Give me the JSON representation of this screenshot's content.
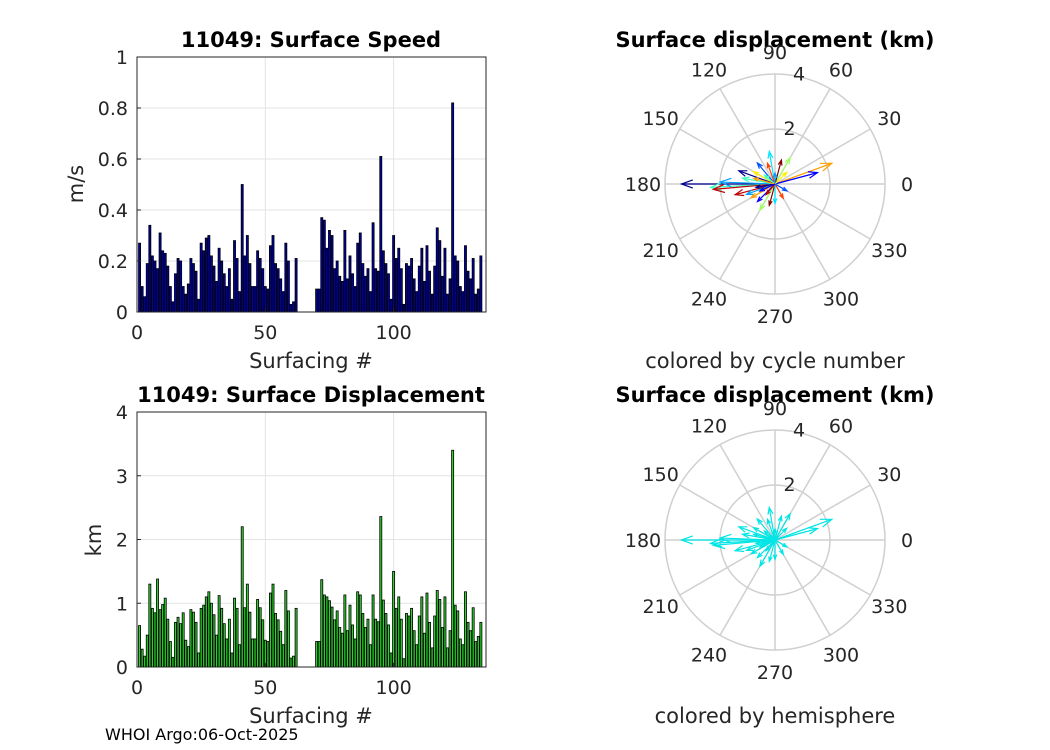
{
  "credit": "WHOI Argo:06-Oct-2025",
  "chart_data": [
    {
      "type": "bar",
      "title": "11049: Surface Speed",
      "xlabel": "Surfacing #",
      "ylabel": "m/s",
      "xlim": [
        0,
        136
      ],
      "ylim": [
        0,
        1
      ],
      "xticks": [
        "0",
        "50",
        "100"
      ],
      "yticks": [
        "0",
        "0.2",
        "0.4",
        "0.6",
        "0.8",
        "1"
      ],
      "bar_color": "#0000a8",
      "x_start": 1,
      "missing_x": [
        63,
        64,
        65,
        66,
        67,
        68,
        69
      ],
      "values": [
        0.27,
        0.1,
        0.06,
        0.19,
        0.34,
        0.22,
        0.2,
        0.17,
        0.31,
        0.24,
        0.23,
        0.18,
        0.1,
        0.04,
        0.15,
        0.21,
        0.2,
        0.1,
        0.07,
        0.11,
        0.21,
        0.19,
        0.16,
        0.05,
        0.27,
        0.24,
        0.29,
        0.3,
        0.22,
        0.18,
        0.12,
        0.25,
        0.2,
        0.15,
        0.1,
        0.17,
        0.05,
        0.28,
        0.21,
        0.08,
        0.5,
        0.22,
        0.3,
        0.19,
        0.1,
        0.1,
        0.24,
        0.21,
        0.17,
        0.1,
        0.09,
        0.26,
        0.3,
        0.19,
        0.17,
        0.13,
        0.08,
        0.27,
        0.2,
        0.03,
        0.04,
        0.21,
        0,
        0,
        0,
        0,
        0,
        0,
        0,
        0.09,
        0.09,
        0.37,
        0.36,
        0.25,
        0.32,
        0.3,
        0.17,
        0.2,
        0.14,
        0.12,
        0.32,
        0.13,
        0.22,
        0.15,
        0.1,
        0.27,
        0.31,
        0.19,
        0.14,
        0.17,
        0.08,
        0.35,
        0.17,
        0.16,
        0.61,
        0.24,
        0.19,
        0.15,
        0.05,
        0.3,
        0.21,
        0.25,
        0.17,
        0.03,
        0.19,
        0.18,
        0.21,
        0.13,
        0.08,
        0.18,
        0.25,
        0.12,
        0.26,
        0.16,
        0.07,
        0.18,
        0.33,
        0.28,
        0.14,
        0.25,
        0.07,
        0.13,
        0.82,
        0.22,
        0.2,
        0.1,
        0.08,
        0.26,
        0.16,
        0.13,
        0.21,
        0.07,
        0.09,
        0.22
      ]
    },
    {
      "type": "polar_vectors",
      "title": "Surface displacement (km)",
      "subtitle": "colored by cycle number",
      "rmax": 4,
      "rticks": [
        "2",
        "4"
      ],
      "angle_labels": [
        "0",
        "30",
        "60",
        "90",
        "120",
        "150",
        "180",
        "210",
        "240",
        "270",
        "300",
        "330"
      ],
      "color_mode": "cycle",
      "vectors": [
        {
          "angle": 180,
          "r": 3.4
        },
        {
          "angle": 183,
          "r": 2.35
        },
        {
          "angle": 185,
          "r": 2.25
        },
        {
          "angle": 178,
          "r": 2.0
        },
        {
          "angle": 20,
          "r": 2.2
        },
        {
          "angle": 15,
          "r": 1.6
        },
        {
          "angle": 60,
          "r": 1.1
        },
        {
          "angle": 75,
          "r": 0.9
        },
        {
          "angle": 100,
          "r": 1.2
        },
        {
          "angle": 110,
          "r": 0.8
        },
        {
          "angle": 130,
          "r": 1.0
        },
        {
          "angle": 150,
          "r": 0.9
        },
        {
          "angle": 160,
          "r": 1.4
        },
        {
          "angle": 170,
          "r": 1.2
        },
        {
          "angle": 195,
          "r": 1.5
        },
        {
          "angle": 200,
          "r": 1.1
        },
        {
          "angle": 210,
          "r": 1.0
        },
        {
          "angle": 225,
          "r": 0.9
        },
        {
          "angle": 240,
          "r": 1.1
        },
        {
          "angle": 255,
          "r": 0.8
        },
        {
          "angle": 270,
          "r": 0.7
        },
        {
          "angle": 300,
          "r": 0.6
        },
        {
          "angle": 330,
          "r": 0.5
        },
        {
          "angle": 45,
          "r": 0.6
        },
        {
          "angle": 190,
          "r": 0.7
        },
        {
          "angle": 140,
          "r": 0.5
        },
        {
          "angle": 230,
          "r": 0.5
        },
        {
          "angle": 90,
          "r": 0.4
        },
        {
          "angle": 165,
          "r": 0.8
        },
        {
          "angle": 205,
          "r": 0.6
        }
      ]
    },
    {
      "type": "bar",
      "title": "11049: Surface Displacement",
      "xlabel": "Surfacing #",
      "ylabel": "km",
      "xlim": [
        0,
        136
      ],
      "ylim": [
        0,
        4
      ],
      "xticks": [
        "0",
        "50",
        "100"
      ],
      "yticks": [
        "0",
        "1",
        "2",
        "3",
        "4"
      ],
      "bar_color": "#2ed22e",
      "x_start": 1,
      "missing_x": [
        63,
        64,
        65,
        66,
        67,
        68,
        69
      ],
      "values": [
        0.65,
        0.28,
        0.17,
        0.5,
        1.3,
        0.92,
        0.85,
        1.38,
        0.9,
        0.98,
        1.08,
        0.75,
        0.4,
        0.15,
        0.7,
        0.78,
        0.68,
        0.85,
        0.42,
        0.32,
        0.9,
        0.86,
        0.7,
        0.22,
        0.92,
        0.97,
        1.1,
        1.18,
        1.0,
        0.82,
        0.5,
        1.12,
        0.92,
        0.68,
        0.44,
        0.75,
        0.22,
        1.08,
        0.92,
        0.35,
        2.2,
        0.93,
        1.3,
        0.86,
        0.44,
        0.44,
        1.06,
        0.93,
        0.74,
        0.42,
        0.4,
        1.16,
        1.3,
        0.84,
        0.74,
        0.56,
        0.35,
        1.2,
        0.88,
        0.14,
        0.17,
        0.92,
        0,
        0,
        0,
        0,
        0,
        0,
        0,
        0.4,
        0.4,
        1.37,
        1.13,
        1.1,
        1.04,
        0.94,
        0.74,
        0.88,
        0.62,
        0.53,
        1.13,
        0.57,
        0.97,
        0.66,
        0.44,
        1.18,
        1.13,
        0.84,
        0.62,
        0.75,
        0.35,
        1.13,
        0.75,
        0.71,
        2.36,
        1.05,
        0.84,
        0.66,
        0.22,
        1.5,
        0.92,
        1.1,
        0.75,
        0.13,
        0.84,
        0.8,
        0.92,
        0.57,
        0.35,
        0.8,
        1.1,
        0.53,
        1.16,
        0.7,
        0.3,
        0.8,
        1.2,
        1.06,
        0.62,
        1.1,
        0.3,
        0.57,
        3.4,
        0.97,
        0.88,
        0.44,
        0.35,
        1.18,
        0.7,
        0.57,
        0.93,
        0.4,
        0.48,
        0.7
      ]
    },
    {
      "type": "polar_vectors",
      "title": "Surface displacement (km)",
      "subtitle": "colored by hemisphere",
      "rmax": 4,
      "rticks": [
        "2",
        "4"
      ],
      "angle_labels": [
        "0",
        "30",
        "60",
        "90",
        "120",
        "150",
        "180",
        "210",
        "240",
        "270",
        "300",
        "330"
      ],
      "color_mode": "hemisphere",
      "vector_color": "#00e5e5",
      "vectors": [
        {
          "angle": 180,
          "r": 3.4
        },
        {
          "angle": 183,
          "r": 2.35
        },
        {
          "angle": 185,
          "r": 2.25
        },
        {
          "angle": 178,
          "r": 2.0
        },
        {
          "angle": 20,
          "r": 2.2
        },
        {
          "angle": 15,
          "r": 1.6
        },
        {
          "angle": 60,
          "r": 1.1
        },
        {
          "angle": 75,
          "r": 0.9
        },
        {
          "angle": 100,
          "r": 1.2
        },
        {
          "angle": 110,
          "r": 0.8
        },
        {
          "angle": 130,
          "r": 1.0
        },
        {
          "angle": 150,
          "r": 0.9
        },
        {
          "angle": 160,
          "r": 1.4
        },
        {
          "angle": 170,
          "r": 1.2
        },
        {
          "angle": 195,
          "r": 1.5
        },
        {
          "angle": 200,
          "r": 1.1
        },
        {
          "angle": 210,
          "r": 1.0
        },
        {
          "angle": 225,
          "r": 0.9
        },
        {
          "angle": 240,
          "r": 1.1
        },
        {
          "angle": 255,
          "r": 0.8
        },
        {
          "angle": 270,
          "r": 0.7
        },
        {
          "angle": 300,
          "r": 0.6
        },
        {
          "angle": 330,
          "r": 0.5
        },
        {
          "angle": 45,
          "r": 0.6
        },
        {
          "angle": 190,
          "r": 0.7
        },
        {
          "angle": 140,
          "r": 0.5
        },
        {
          "angle": 230,
          "r": 0.5
        },
        {
          "angle": 90,
          "r": 0.4
        },
        {
          "angle": 165,
          "r": 0.8
        },
        {
          "angle": 205,
          "r": 0.6
        }
      ]
    }
  ]
}
